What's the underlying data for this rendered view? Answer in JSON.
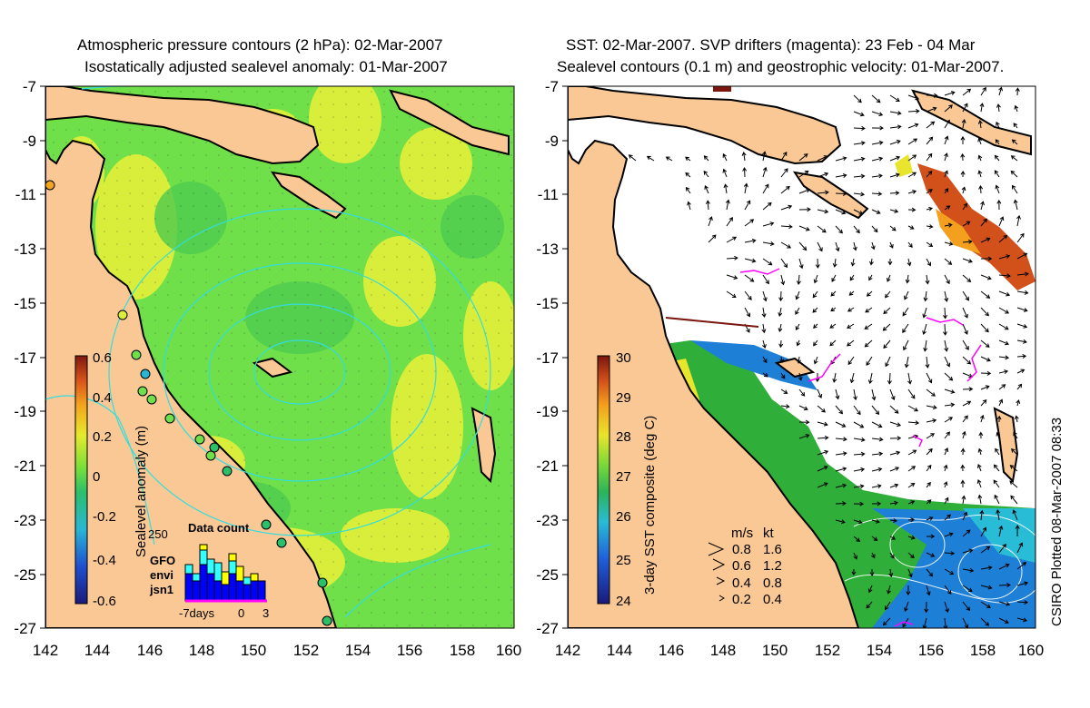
{
  "left_panel": {
    "title_line1": "Atmospheric pressure contours (2 hPa): 02-Mar-2007",
    "title_line2": "Isostatically adjusted sealevel anomaly: 01-Mar-2007",
    "y_ticks": [
      "-7",
      "-9",
      "-11",
      "-13",
      "-15",
      "-17",
      "-19",
      "-21",
      "-23",
      "-25",
      "-27"
    ],
    "x_ticks": [
      "142",
      "144",
      "146",
      "148",
      "150",
      "152",
      "154",
      "156",
      "158",
      "160"
    ],
    "colorbar_title": "Sealevel anomaly (m)",
    "colorbar_ticks": [
      "0.6",
      "0.4",
      "0.2",
      "0",
      "-0.2",
      "-0.4",
      "-0.6"
    ],
    "inset": {
      "title": "Data count",
      "y_max_label": "250",
      "legend": [
        {
          "label": "GFO",
          "color": "#ffff00"
        },
        {
          "label": "envi",
          "color": "#33ffff"
        },
        {
          "label": "jsn1",
          "color": "#0000ff"
        }
      ],
      "x_labels": [
        "-7days",
        "0",
        "3"
      ]
    }
  },
  "right_panel": {
    "title_line1": "SST: 02-Mar-2007. SVP drifters (magenta): 23 Feb - 04 Mar",
    "title_line2": "Sealevel contours (0.1 m) and geostrophic velocity: 01-Mar-2007.",
    "y_ticks": [
      "-7",
      "-9",
      "-11",
      "-13",
      "-15",
      "-17",
      "-19",
      "-21",
      "-23",
      "-25",
      "-27"
    ],
    "x_ticks": [
      "142",
      "144",
      "146",
      "148",
      "150",
      "152",
      "154",
      "156",
      "158",
      "160"
    ],
    "colorbar_title": "3-day SST composite (deg C)",
    "colorbar_ticks": [
      "30",
      "29",
      "28",
      "27",
      "26",
      "25",
      "24"
    ],
    "velocity_legend": {
      "header_ms": "m/s",
      "header_kt": "kt",
      "rows": [
        {
          "ms": "0.8",
          "kt": "1.6"
        },
        {
          "ms": "0.6",
          "kt": "1.2"
        },
        {
          "ms": "0.4",
          "kt": "0.8"
        },
        {
          "ms": "0.2",
          "kt": "0.4"
        }
      ]
    },
    "credit": "CSIRO Plotted 08-Mar-2007 08:33"
  },
  "colors": {
    "land": "#f9c894",
    "sea_green": "#6fe04a",
    "sea_yellow": "#d8ee3a",
    "contour_cyan": "#33dddd",
    "drifter_magenta": "#ff00ff",
    "sst_green": "#2fae3a",
    "sst_blue": "#1d7fd6"
  }
}
